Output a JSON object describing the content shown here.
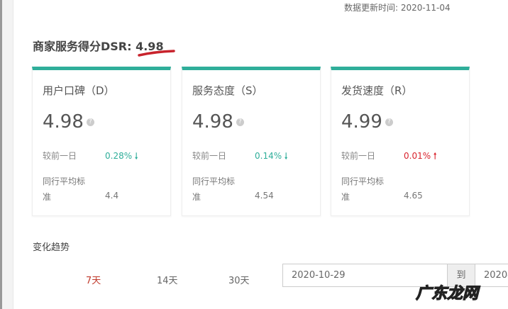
{
  "update_time": "数据更新时间: 2020-11-04",
  "title": "商家服务得分DSR: 4.98",
  "accent": "#2fae9a",
  "cards": [
    {
      "title": "用户口碑（D）",
      "value": "4.98",
      "compare_label": "较前一日",
      "change": "0.28%",
      "direction": "down",
      "avg_label_1": "同行平均标",
      "avg_label_2": "准",
      "avg": "4.4"
    },
    {
      "title": "服务态度（S）",
      "value": "4.98",
      "compare_label": "较前一日",
      "change": "0.14%",
      "direction": "down",
      "avg_label_1": "同行平均标",
      "avg_label_2": "准",
      "avg": "4.54"
    },
    {
      "title": "发货速度（R）",
      "value": "4.99",
      "compare_label": "较前一日",
      "change": "0.01%",
      "direction": "up",
      "avg_label_1": "同行平均标",
      "avg_label_2": "准",
      "avg": "4.65"
    }
  ],
  "trend": {
    "title": "变化趋势",
    "tabs": [
      "7天",
      "14天",
      "30天"
    ],
    "active_tab": "7天",
    "start_date": "2020-10-29",
    "to_label": "到",
    "end_date": "2020-"
  },
  "watermark": "广东龙网"
}
